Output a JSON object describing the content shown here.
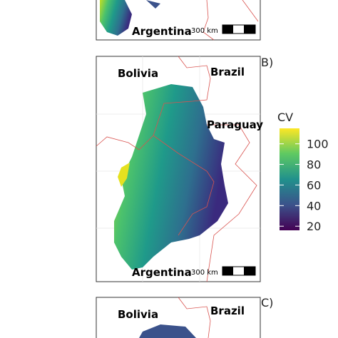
{
  "panels": [
    {
      "country_labels": [
        "Argentina"
      ],
      "scale": "300 km"
    },
    {
      "letter": "B)",
      "country_labels": [
        "Bolivia",
        "Brazil",
        "Paraguay",
        "Argentina"
      ],
      "scale": "300 km"
    },
    {
      "letter": "C)",
      "country_labels": [
        "Bolivia",
        "Brazil"
      ]
    }
  ],
  "colorbar": {
    "title": "CV",
    "lim": [
      16,
      115
    ],
    "ticks": [
      20,
      40,
      60,
      80,
      100
    ]
  }
}
